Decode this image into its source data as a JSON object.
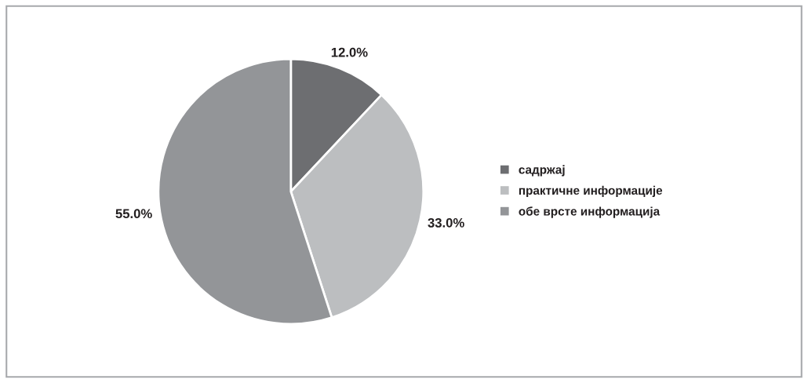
{
  "chart_data": {
    "type": "pie",
    "categories": [
      "садржај",
      "практичне информације",
      "обе врсте информација"
    ],
    "values": [
      12,
      33,
      55
    ],
    "colors": [
      "#6d6e71",
      "#bcbec0",
      "#939598"
    ],
    "value_labels": [
      "12.0%",
      "33.0%",
      "55.0%"
    ],
    "legend": "right"
  }
}
